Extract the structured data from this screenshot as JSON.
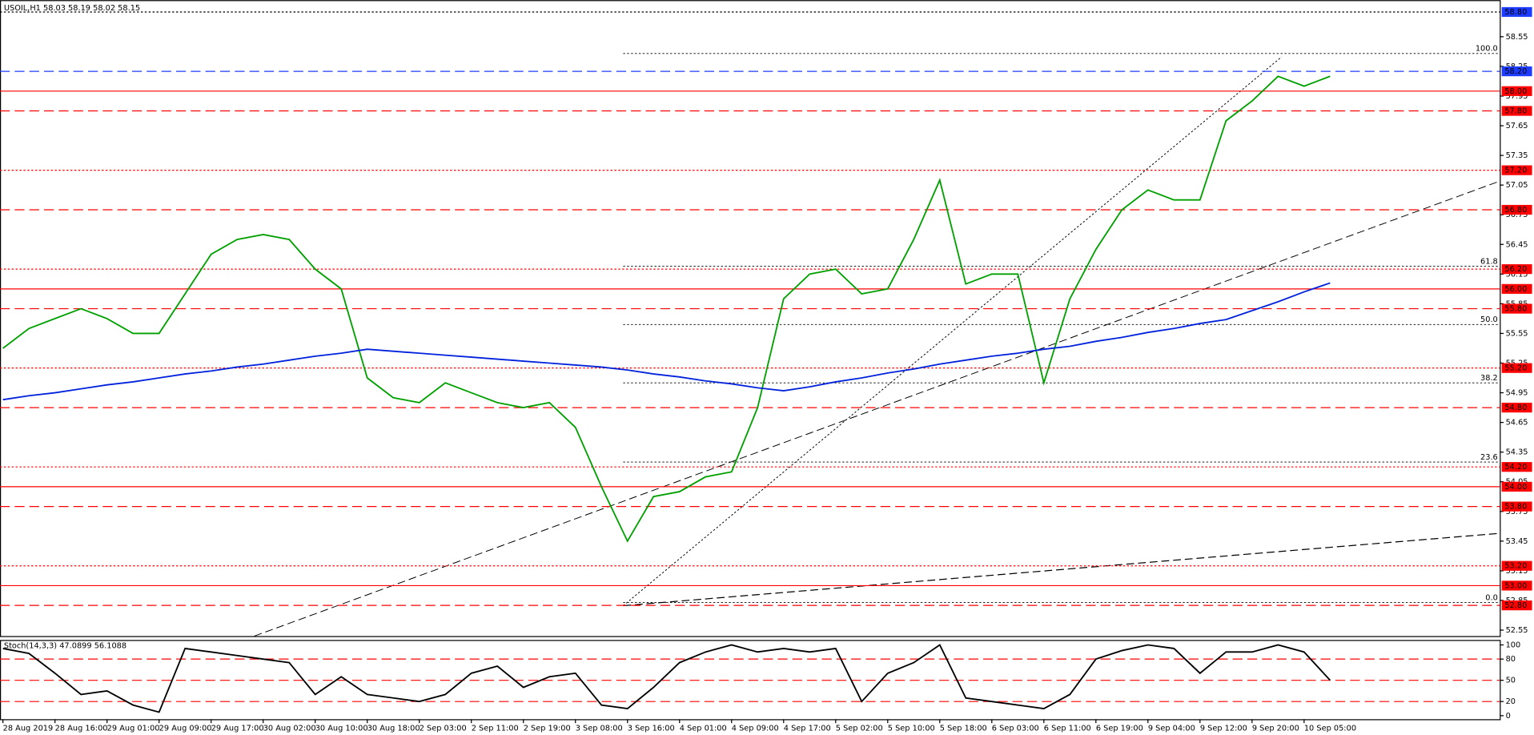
{
  "chart_data": [
    {
      "type": "line",
      "title": "USOIL,H1  58.03 58.19 58.02 58.15",
      "categories": [
        "28 Aug 2019",
        null,
        "28 Aug 16:00",
        null,
        "29 Aug 01:00",
        null,
        "29 Aug 09:00",
        null,
        "29 Aug 17:00",
        null,
        "30 Aug 02:00",
        null,
        "30 Aug 10:00",
        null,
        "30 Aug 18:00",
        null,
        "2 Sep 03:00",
        null,
        "2 Sep 11:00",
        null,
        "2 Sep 19:00",
        null,
        "3 Sep 08:00",
        null,
        "3 Sep 16:00",
        null,
        "4 Sep 01:00",
        null,
        "4 Sep 09:00",
        null,
        "4 Sep 17:00",
        null,
        "5 Sep 02:00",
        null,
        "5 Sep 10:00",
        null,
        "5 Sep 18:00",
        null,
        "6 Sep 03:00",
        null,
        "6 Sep 11:00",
        null,
        "6 Sep 19:00",
        null,
        "9 Sep 04:00",
        null,
        "9 Sep 12:00",
        null,
        "9 Sep 20:00",
        null,
        "10 Sep 05:00",
        null
      ],
      "series": [
        {
          "color": "#00a000",
          "values": [
            55.4,
            55.6,
            55.7,
            55.8,
            55.7,
            55.55,
            55.55,
            55.95,
            56.35,
            56.5,
            56.55,
            56.5,
            56.2,
            56.0,
            55.1,
            54.9,
            54.85,
            55.05,
            54.95,
            54.85,
            54.8,
            54.85,
            54.6,
            54.0,
            53.45,
            53.9,
            53.95,
            54.1,
            54.15,
            54.8,
            55.9,
            56.15,
            56.2,
            55.95,
            56.0,
            56.5,
            57.1,
            56.05,
            56.15,
            56.15,
            55.05,
            55.9,
            56.4,
            56.8,
            57.0,
            56.9,
            56.9,
            57.7,
            57.9,
            58.15,
            58.05,
            58.15
          ]
        },
        {
          "color": "#0022dd",
          "values": [
            54.88,
            54.92,
            54.95,
            54.99,
            55.03,
            55.06,
            55.1,
            55.14,
            55.17,
            55.21,
            55.24,
            55.28,
            55.32,
            55.35,
            55.39,
            55.37,
            55.35,
            55.33,
            55.31,
            55.29,
            55.27,
            55.25,
            55.23,
            55.21,
            55.18,
            55.14,
            55.11,
            55.07,
            55.04,
            55.0,
            54.97,
            55.01,
            55.06,
            55.1,
            55.15,
            55.19,
            55.24,
            55.28,
            55.32,
            55.35,
            55.39,
            55.42,
            55.47,
            55.51,
            55.56,
            55.6,
            55.65,
            55.69,
            55.78,
            55.87,
            55.97,
            56.06
          ]
        }
      ],
      "ylim": [
        52.49,
        58.92
      ],
      "yticks": [
        52.55,
        52.85,
        53.15,
        53.45,
        53.75,
        54.05,
        54.35,
        54.65,
        54.95,
        55.25,
        55.55,
        55.85,
        56.15,
        56.45,
        56.75,
        57.05,
        57.35,
        57.65,
        57.95,
        58.25,
        58.55
      ],
      "levels": [
        {
          "value": 58.8,
          "label": "58.80",
          "color": "#1e3cff",
          "style": "dotted"
        },
        {
          "value": 58.2,
          "label": "58.20",
          "color": "#1e3cff",
          "style": "dashed"
        },
        {
          "value": 58.0,
          "label": "58.00",
          "color": "#ff0000",
          "style": "solid"
        },
        {
          "value": 57.8,
          "label": "57.80",
          "color": "#ff0000",
          "style": "dashed"
        },
        {
          "value": 57.2,
          "label": "57.20",
          "color": "#ff0000",
          "style": "dotted"
        },
        {
          "value": 56.8,
          "label": "56.80",
          "color": "#ff0000",
          "style": "dashed"
        },
        {
          "value": 56.2,
          "label": "56.20",
          "color": "#ff0000",
          "style": "dotted"
        },
        {
          "value": 56.0,
          "label": "56.00",
          "color": "#ff0000",
          "style": "solid"
        },
        {
          "value": 55.8,
          "label": "55.80",
          "color": "#ff0000",
          "style": "dashed"
        },
        {
          "value": 55.2,
          "label": "55.20",
          "color": "#ff0000",
          "style": "dotted"
        },
        {
          "value": 54.8,
          "label": "54.80",
          "color": "#ff0000",
          "style": "dashed"
        },
        {
          "value": 54.2,
          "label": "54.20",
          "color": "#ff0000",
          "style": "dotted"
        },
        {
          "value": 54.0,
          "label": "54.00",
          "color": "#ff0000",
          "style": "solid"
        },
        {
          "value": 53.8,
          "label": "53.80",
          "color": "#ff0000",
          "style": "dashed"
        },
        {
          "value": 53.2,
          "label": "53.20",
          "color": "#ff0000",
          "style": "dotted"
        },
        {
          "value": 53.0,
          "label": "53.00",
          "color": "#ff0000",
          "style": "solid"
        },
        {
          "value": 52.8,
          "label": "52.80",
          "color": "#ff0000",
          "style": "dashed"
        }
      ],
      "fib": [
        {
          "value": 58.38,
          "label": "100.0"
        },
        {
          "value": 56.23,
          "label": "61.8"
        },
        {
          "value": 55.64,
          "label": "50.0"
        },
        {
          "value": 55.05,
          "label": "38.2"
        },
        {
          "value": 54.25,
          "label": "23.6"
        },
        {
          "value": 52.83,
          "label": "0.0"
        }
      ]
    },
    {
      "type": "line",
      "title": "Stoch(14,3,3) 47.0899 56.1088",
      "series": [
        {
          "color": "#000000",
          "values": [
            95,
            88,
            60,
            30,
            35,
            15,
            5,
            95,
            90,
            85,
            80,
            75,
            30,
            55,
            30,
            25,
            20,
            30,
            60,
            70,
            40,
            55,
            60,
            15,
            10,
            40,
            75,
            90,
            100,
            90,
            95,
            90,
            95,
            20,
            60,
            75,
            100,
            25,
            20,
            15,
            10,
            30,
            80,
            92,
            100,
            95,
            60,
            90,
            90,
            100,
            90,
            50
          ]
        }
      ],
      "ylim": [
        -5,
        107
      ],
      "yticks": [
        0,
        20,
        50,
        80,
        100
      ],
      "levels": [
        80,
        50,
        20
      ]
    }
  ]
}
